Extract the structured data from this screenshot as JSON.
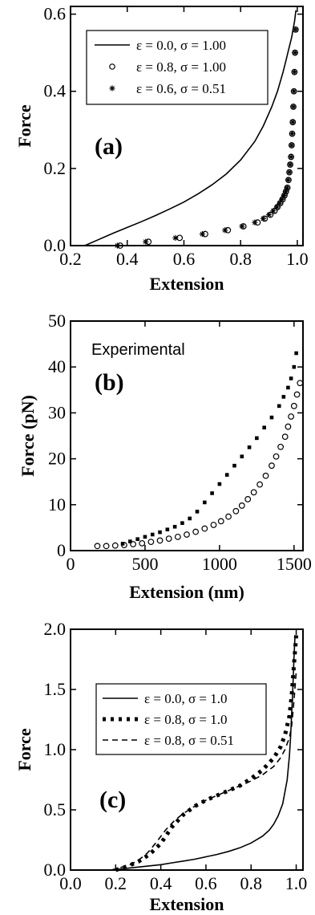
{
  "chart_data": [
    {
      "type": "line",
      "panel_label": "(a)",
      "xlabel": "Extension",
      "ylabel": "Force",
      "xlim": [
        0.2,
        1.02
      ],
      "ylim": [
        0.0,
        0.62
      ],
      "xticks": [
        "0.2",
        "0.4",
        "0.6",
        "0.8",
        "1.0"
      ],
      "yticks": [
        "0.0",
        "0.2",
        "0.4",
        "0.6"
      ],
      "grid": false,
      "legend_position": "top-left",
      "series": [
        {
          "name": "ε = 0.0, σ = 1.00",
          "style": "solid",
          "x": [
            0.25,
            0.3,
            0.35,
            0.4,
            0.45,
            0.5,
            0.55,
            0.6,
            0.65,
            0.7,
            0.75,
            0.8,
            0.85,
            0.88,
            0.91,
            0.93,
            0.95,
            0.96,
            0.97,
            0.98,
            0.985,
            0.99,
            0.995
          ],
          "y": [
            0.0,
            0.016,
            0.032,
            0.047,
            0.062,
            0.078,
            0.095,
            0.113,
            0.134,
            0.158,
            0.186,
            0.222,
            0.27,
            0.31,
            0.36,
            0.4,
            0.45,
            0.48,
            0.51,
            0.54,
            0.56,
            0.58,
            0.61
          ]
        },
        {
          "name": "ε = 0.8, σ = 1.00",
          "style": "circle",
          "x": [
            0.375,
            0.475,
            0.585,
            0.675,
            0.755,
            0.81,
            0.86,
            0.885,
            0.905,
            0.92,
            0.93,
            0.94,
            0.948,
            0.955,
            0.96,
            0.965,
            0.969,
            0.972,
            0.975,
            0.978,
            0.98,
            0.982,
            0.984,
            0.986,
            0.988,
            0.99,
            0.992,
            0.994
          ],
          "y": [
            0.0,
            0.01,
            0.02,
            0.03,
            0.04,
            0.05,
            0.06,
            0.07,
            0.08,
            0.09,
            0.1,
            0.11,
            0.12,
            0.13,
            0.14,
            0.15,
            0.17,
            0.19,
            0.21,
            0.23,
            0.26,
            0.29,
            0.32,
            0.36,
            0.4,
            0.45,
            0.5,
            0.56
          ]
        },
        {
          "name": "ε = 0.6, σ = 0.51",
          "style": "star",
          "x": [
            0.365,
            0.465,
            0.57,
            0.665,
            0.745,
            0.805,
            0.85,
            0.88,
            0.9,
            0.915,
            0.928,
            0.938,
            0.946,
            0.953,
            0.959,
            0.964,
            0.968,
            0.972,
            0.975,
            0.978,
            0.98,
            0.982,
            0.984,
            0.986,
            0.988,
            0.99,
            0.992,
            0.994
          ],
          "y": [
            0.0,
            0.01,
            0.02,
            0.03,
            0.04,
            0.05,
            0.06,
            0.07,
            0.08,
            0.09,
            0.1,
            0.11,
            0.12,
            0.13,
            0.14,
            0.15,
            0.17,
            0.19,
            0.21,
            0.23,
            0.26,
            0.29,
            0.32,
            0.36,
            0.4,
            0.45,
            0.5,
            0.56
          ]
        }
      ]
    },
    {
      "type": "scatter",
      "panel_label": "(b)",
      "annotation": "Experimental",
      "xlabel": "Extension (nm)",
      "ylabel": "Force (pN)",
      "xlim": [
        0,
        1560
      ],
      "ylim": [
        0,
        50
      ],
      "xticks": [
        "0",
        "500",
        "1000",
        "1500"
      ],
      "yticks": [
        "0",
        "10",
        "20",
        "30",
        "40",
        "50"
      ],
      "grid": false,
      "series": [
        {
          "style": "square-dots",
          "x": [
            350,
            400,
            450,
            500,
            550,
            600,
            650,
            700,
            750,
            800,
            850,
            900,
            950,
            1000,
            1050,
            1100,
            1150,
            1200,
            1250,
            1300,
            1350,
            1400,
            1430,
            1460,
            1480,
            1500,
            1515
          ],
          "y": [
            1.5,
            2.0,
            2.5,
            3.0,
            3.5,
            4.0,
            4.6,
            5.2,
            6.0,
            7.0,
            8.5,
            10.5,
            12.5,
            14.5,
            16.5,
            18.5,
            20.5,
            22.5,
            24.5,
            26.8,
            29.0,
            31.5,
            33.5,
            35.5,
            37.5,
            40.0,
            43.0
          ]
        },
        {
          "style": "circle",
          "x": [
            180,
            240,
            300,
            360,
            420,
            480,
            540,
            600,
            660,
            720,
            780,
            840,
            900,
            960,
            1010,
            1060,
            1110,
            1150,
            1190,
            1230,
            1270,
            1310,
            1350,
            1380,
            1410,
            1440,
            1460,
            1480,
            1500,
            1520,
            1540
          ],
          "y": [
            1.0,
            1.0,
            1.1,
            1.2,
            1.4,
            1.6,
            1.9,
            2.2,
            2.6,
            3.0,
            3.5,
            4.1,
            4.8,
            5.6,
            6.4,
            7.4,
            8.6,
            9.8,
            11.2,
            12.7,
            14.4,
            16.3,
            18.5,
            20.5,
            22.6,
            24.8,
            27.0,
            29.2,
            31.5,
            34.0,
            36.5
          ]
        }
      ]
    },
    {
      "type": "line",
      "panel_label": "(c)",
      "xlabel": "Extension",
      "ylabel": "Force",
      "xlim": [
        0.0,
        1.03
      ],
      "ylim": [
        0.0,
        2.0
      ],
      "xticks": [
        "0.0",
        "0.2",
        "0.4",
        "0.6",
        "0.8",
        "1.0"
      ],
      "yticks": [
        "0.0",
        "0.5",
        "1.0",
        "1.5",
        "2.0"
      ],
      "grid": false,
      "legend_position": "top-center",
      "series": [
        {
          "name": "ε = 0.0, σ = 1.0",
          "style": "solid",
          "x": [
            0.18,
            0.25,
            0.3,
            0.35,
            0.4,
            0.45,
            0.5,
            0.55,
            0.6,
            0.65,
            0.7,
            0.75,
            0.8,
            0.85,
            0.88,
            0.9,
            0.92,
            0.94,
            0.96,
            0.97,
            0.975,
            0.98,
            0.985,
            0.99,
            0.995
          ],
          "y": [
            0.0,
            0.015,
            0.025,
            0.035,
            0.045,
            0.06,
            0.075,
            0.09,
            0.11,
            0.13,
            0.155,
            0.185,
            0.225,
            0.28,
            0.33,
            0.38,
            0.45,
            0.55,
            0.75,
            0.95,
            1.1,
            1.3,
            1.5,
            1.75,
            1.95
          ]
        },
        {
          "name": "ε = 0.8, σ = 1.0",
          "style": "dotted",
          "x": [
            0.2,
            0.25,
            0.3,
            0.35,
            0.4,
            0.45,
            0.5,
            0.55,
            0.6,
            0.65,
            0.7,
            0.75,
            0.8,
            0.85,
            0.9,
            0.93,
            0.95,
            0.97,
            0.98,
            0.99,
            1.0
          ],
          "y": [
            0.0,
            0.03,
            0.07,
            0.13,
            0.22,
            0.36,
            0.46,
            0.53,
            0.58,
            0.62,
            0.66,
            0.7,
            0.76,
            0.83,
            0.93,
            1.02,
            1.12,
            1.28,
            1.45,
            1.7,
            1.95
          ]
        },
        {
          "name": "ε = 0.8, σ = 0.51",
          "style": "dashed",
          "x": [
            0.18,
            0.22,
            0.26,
            0.3,
            0.34,
            0.38,
            0.42,
            0.46,
            0.5,
            0.55,
            0.6,
            0.65,
            0.7,
            0.75,
            0.8,
            0.85,
            0.9,
            0.93,
            0.95,
            0.97,
            0.98,
            0.99,
            1.0
          ],
          "y": [
            0.0,
            0.02,
            0.04,
            0.08,
            0.14,
            0.23,
            0.33,
            0.41,
            0.47,
            0.53,
            0.58,
            0.62,
            0.66,
            0.7,
            0.74,
            0.79,
            0.86,
            0.93,
            1.0,
            1.1,
            1.2,
            1.4,
            1.65
          ]
        }
      ]
    }
  ]
}
